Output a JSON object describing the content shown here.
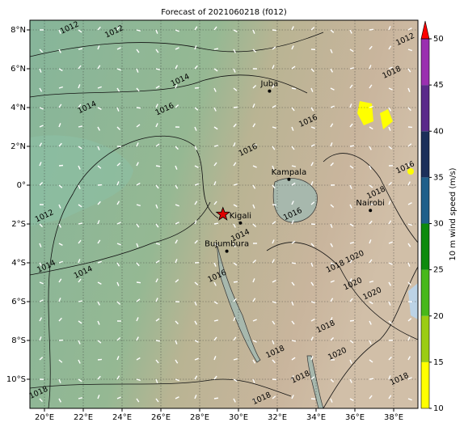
{
  "title": "Forecast of 2021060218 (f012)",
  "map": {
    "lonlim": [
      19.25,
      39.25
    ],
    "latlim": [
      -11.5,
      8.5
    ],
    "lonticks": [
      {
        "value": 20,
        "label": "20°E"
      },
      {
        "value": 22,
        "label": "22°E"
      },
      {
        "value": 24,
        "label": "24°E"
      },
      {
        "value": 26,
        "label": "26°E"
      },
      {
        "value": 28,
        "label": "28°E"
      },
      {
        "value": 30,
        "label": "30°E"
      },
      {
        "value": 32,
        "label": "32°E"
      },
      {
        "value": 34,
        "label": "34°E"
      },
      {
        "value": 36,
        "label": "36°E"
      },
      {
        "value": 38,
        "label": "38°E"
      }
    ],
    "latticks": [
      {
        "value": 8,
        "label": "8°N"
      },
      {
        "value": 6,
        "label": "6°N"
      },
      {
        "value": 4,
        "label": "4°N"
      },
      {
        "value": 2,
        "label": "2°N"
      },
      {
        "value": 0,
        "label": "0°"
      },
      {
        "value": -2,
        "label": "2°S"
      },
      {
        "value": -4,
        "label": "4°S"
      },
      {
        "value": -6,
        "label": "6°S"
      },
      {
        "value": -8,
        "label": "8°S"
      },
      {
        "value": -10,
        "label": "10°S"
      }
    ],
    "cities": [
      {
        "name": "Juba",
        "lon": 31.6,
        "lat": 4.85
      },
      {
        "name": "Kampala",
        "lon": 32.6,
        "lat": 0.3
      },
      {
        "name": "Nairobi",
        "lon": 36.8,
        "lat": -1.3
      },
      {
        "name": "Kigali",
        "lon": 30.1,
        "lat": -1.95
      },
      {
        "name": "Bujumbura",
        "lon": 29.4,
        "lat": -3.4
      }
    ],
    "star": {
      "lon": 29.2,
      "lat": -1.5
    },
    "contour_labels": [
      {
        "text": "1012",
        "lon": 21.3,
        "lat": 8.1
      },
      {
        "text": "1012",
        "lon": 23.6,
        "lat": 7.9
      },
      {
        "text": "1014",
        "lon": 27.0,
        "lat": 5.4
      },
      {
        "text": "1014",
        "lon": 22.2,
        "lat": 4.0
      },
      {
        "text": "1016",
        "lon": 26.2,
        "lat": 3.9
      },
      {
        "text": "1012",
        "lon": 20.0,
        "lat": -1.6
      },
      {
        "text": "1014",
        "lon": 20.1,
        "lat": -4.2
      },
      {
        "text": "1014",
        "lon": 22.0,
        "lat": -4.5
      },
      {
        "text": "1016",
        "lon": 30.5,
        "lat": 1.8
      },
      {
        "text": "1016",
        "lon": 33.6,
        "lat": 3.3
      },
      {
        "text": "1014",
        "lon": 30.1,
        "lat": -2.6
      },
      {
        "text": "1016",
        "lon": 28.9,
        "lat": -4.7
      },
      {
        "text": "1016",
        "lon": 32.8,
        "lat": -1.5
      },
      {
        "text": "1018",
        "lon": 35.0,
        "lat": -4.2
      },
      {
        "text": "1020",
        "lon": 36.0,
        "lat": -3.7
      },
      {
        "text": "1020",
        "lon": 35.9,
        "lat": -5.1
      },
      {
        "text": "1020",
        "lon": 36.9,
        "lat": -5.6
      },
      {
        "text": "1018",
        "lon": 34.5,
        "lat": -7.3
      },
      {
        "text": "1020",
        "lon": 35.1,
        "lat": -8.7
      },
      {
        "text": "1018",
        "lon": 33.2,
        "lat": -9.9
      },
      {
        "text": "1018",
        "lon": 31.2,
        "lat": -11.0
      },
      {
        "text": "1018",
        "lon": 19.7,
        "lat": -10.7
      },
      {
        "text": "1018",
        "lon": 38.3,
        "lat": -10.0
      },
      {
        "text": "1016",
        "lon": 38.6,
        "lat": 0.9
      },
      {
        "text": "1012",
        "lon": 38.6,
        "lat": 7.5
      },
      {
        "text": "1018",
        "lon": 37.9,
        "lat": 5.8
      },
      {
        "text": "1018",
        "lon": 31.9,
        "lat": -8.6
      },
      {
        "text": "1018",
        "lon": 37.1,
        "lat": -0.4
      }
    ]
  },
  "colorbar": {
    "label": "10 m wind speed (m/s)",
    "lim": [
      10,
      50
    ],
    "ticks": [
      10,
      15,
      20,
      25,
      30,
      35,
      40,
      45,
      50
    ],
    "colors": [
      "#ffff00",
      "#9bcc12",
      "#48b81a",
      "#0d8a0d",
      "#1f5f8a",
      "#1c2f5a",
      "#5a2a8a",
      "#9a2fb0"
    ],
    "extend_color": "#ff0000"
  }
}
